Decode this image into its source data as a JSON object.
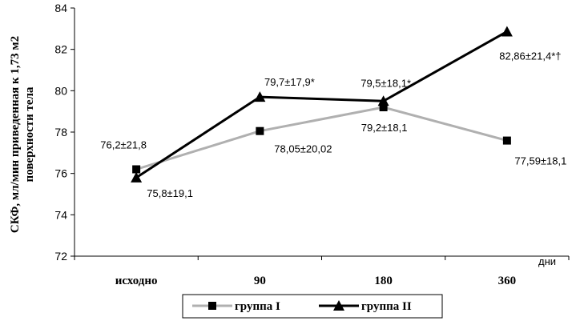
{
  "chart_data": {
    "type": "line",
    "categories": [
      "исходно",
      "90",
      "180",
      "360"
    ],
    "ylim": [
      72,
      84
    ],
    "yticks": [
      72,
      74,
      76,
      78,
      80,
      82,
      84
    ],
    "ylabel_line1": "СКФ, мл/мин приведенная к 1,73 м2",
    "ylabel_line2": "поверхности тела",
    "xunit": "дни",
    "legend_position": "bottom",
    "grid": false,
    "series": [
      {
        "name": "группа I",
        "values": [
          76.2,
          78.05,
          79.2,
          77.59
        ],
        "labels": [
          "76,2±21,8",
          "78,05±20,02",
          "79,2±18,1",
          "77,59±18,1"
        ],
        "color": "#b0b0b0",
        "marker": "square"
      },
      {
        "name": "группа II",
        "values": [
          75.8,
          79.7,
          79.5,
          82.86
        ],
        "labels": [
          "75,8±19,1",
          "79,7±17,9*",
          "79,5±18,1*",
          "82,86±21,4*†"
        ],
        "color": "#000000",
        "marker": "triangle"
      }
    ]
  }
}
